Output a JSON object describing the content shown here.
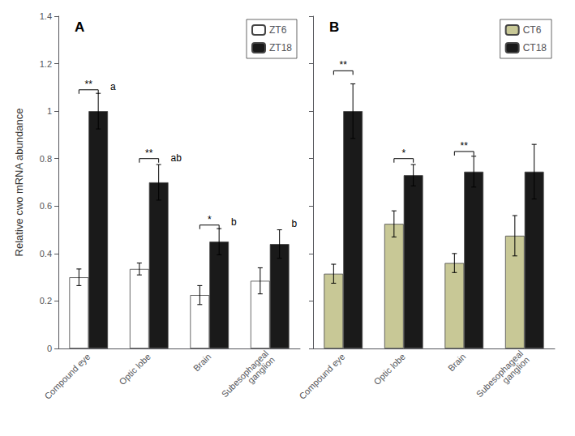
{
  "chart_data": [
    {
      "type": "bar",
      "title": "A",
      "y_label": "Relative cwo mRNA abundance",
      "categories": [
        "Compound eye",
        "Optic lobe",
        "Brain",
        "Subesophageal\nganglion"
      ],
      "series": [
        {
          "name": "ZT6",
          "color": "#ffffff",
          "values": [
            0.3,
            0.335,
            0.225,
            0.285
          ],
          "errors": [
            0.035,
            0.025,
            0.04,
            0.055
          ]
        },
        {
          "name": "ZT18",
          "color": "#1a1a1a",
          "values": [
            1.0,
            0.7,
            0.45,
            0.44
          ],
          "errors": [
            0.075,
            0.075,
            0.055,
            0.06
          ]
        }
      ],
      "ylim": [
        0,
        1.4
      ],
      "yticks": [
        0,
        0.2,
        0.4,
        0.6,
        0.8,
        1,
        1.2,
        1.4
      ],
      "grid": false,
      "legend": "upper right",
      "annotations": [
        {
          "category": "Compound eye",
          "y": 1.09,
          "text": "**"
        },
        {
          "category": "Optic lobe",
          "y": 0.8,
          "text": "**"
        },
        {
          "category": "Brain",
          "y": 0.52,
          "text": "*"
        },
        {
          "category": "Compound eye",
          "text": "a"
        },
        {
          "category": "Optic lobe",
          "text": "ab"
        },
        {
          "category": "Brain",
          "text": "b"
        },
        {
          "category": "Subesophageal\nganglion",
          "text": "b"
        }
      ]
    },
    {
      "type": "bar",
      "title": "B",
      "categories": [
        "Compound eye",
        "Optic lobe",
        "Brain",
        "Subesophageal\nganglion"
      ],
      "series": [
        {
          "name": "CT6",
          "color": "#c8c896",
          "values": [
            0.315,
            0.525,
            0.36,
            0.475
          ],
          "errors": [
            0.04,
            0.055,
            0.04,
            0.085
          ]
        },
        {
          "name": "CT18",
          "color": "#1a1a1a",
          "values": [
            1.0,
            0.73,
            0.745,
            0.745
          ],
          "errors": [
            0.115,
            0.045,
            0.065,
            0.115
          ]
        }
      ],
      "ylim": [
        0,
        1.4
      ],
      "yticks": [
        0,
        0.2,
        0.4,
        0.6,
        0.8,
        1,
        1.2,
        1.4
      ],
      "grid": false,
      "legend": "upper right",
      "tick_labels": "x",
      "annotations": [
        {
          "category": "Compound eye",
          "y": 1.17,
          "text": "**"
        },
        {
          "category": "Optic lobe",
          "y": 0.8,
          "text": "*"
        },
        {
          "category": "Brain",
          "y": 0.83,
          "text": "**"
        }
      ]
    }
  ]
}
